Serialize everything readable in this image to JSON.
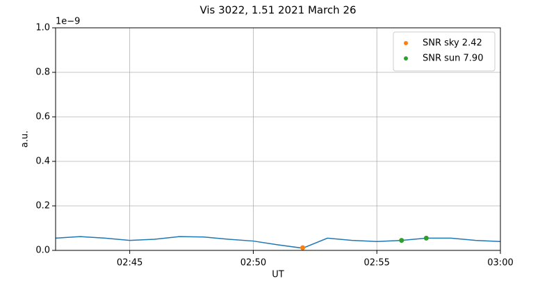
{
  "chart_data": {
    "type": "line",
    "title": "Vis 3022, 1.51 2021 March 26",
    "xlabel": "UT",
    "ylabel": "a.u.",
    "offset_label": "1e−9",
    "x": [
      "02:42",
      "02:43",
      "02:44",
      "02:45",
      "02:46",
      "02:47",
      "02:48",
      "02:49",
      "02:50",
      "02:51",
      "02:52",
      "02:53",
      "02:54",
      "02:55",
      "02:56",
      "02:57",
      "02:58",
      "02:59",
      "03:00"
    ],
    "series": [
      {
        "type": "line",
        "color": "#1f77b4",
        "values": [
          0.055,
          0.062,
          0.055,
          0.045,
          0.05,
          0.062,
          0.06,
          0.05,
          0.042,
          0.025,
          0.01,
          0.055,
          0.045,
          0.04,
          0.045,
          0.055,
          0.055,
          0.045,
          0.04
        ]
      },
      {
        "type": "scatter",
        "name": "SNR sky 2.42",
        "color": "#ff7f0e",
        "x": [
          "02:52"
        ],
        "values": [
          0.012
        ]
      },
      {
        "type": "scatter",
        "name": "SNR sun 7.90",
        "color": "#2ca02c",
        "x": [
          "02:56",
          "02:57"
        ],
        "values": [
          0.045,
          0.055
        ]
      }
    ],
    "xlim": [
      "02:42",
      "03:00"
    ],
    "xticks": [
      "02:45",
      "02:50",
      "02:55",
      "03:00"
    ],
    "ylim": [
      0,
      1
    ],
    "yticks": [
      {
        "value": 0,
        "label": "0.0"
      },
      0.2,
      0.4,
      0.6,
      0.8,
      {
        "value": 1,
        "label": "1.0"
      }
    ],
    "grid": true,
    "legend": "upper right"
  }
}
